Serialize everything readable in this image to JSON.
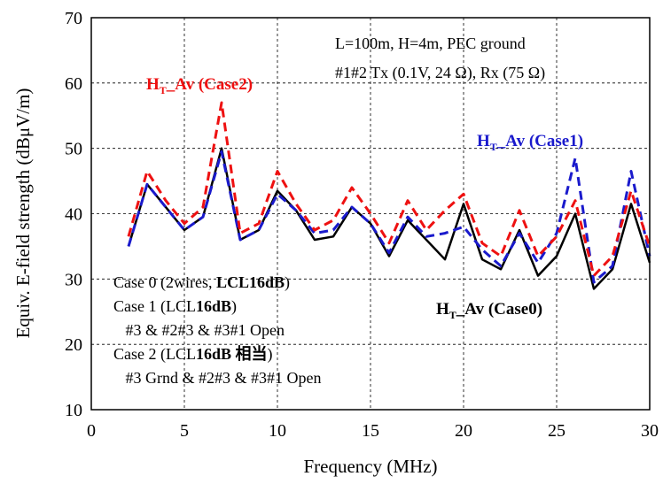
{
  "chart_data": {
    "type": "line",
    "xlabel": "Frequency (MHz)",
    "ylabel": "Equiv. E-field strength (dBμV/m)",
    "xlim": [
      0,
      30
    ],
    "ylim": [
      10,
      70
    ],
    "xticks": [
      0,
      5,
      10,
      15,
      20,
      25,
      30
    ],
    "yticks": [
      10,
      20,
      30,
      40,
      50,
      60,
      70
    ],
    "x": [
      2,
      3,
      4,
      5,
      6,
      7,
      8,
      9,
      10,
      11,
      12,
      13,
      14,
      15,
      16,
      17,
      18,
      19,
      20,
      21,
      22,
      23,
      24,
      25,
      26,
      27,
      28,
      29,
      30
    ],
    "series": [
      {
        "name": "Case0",
        "color": "#000000",
        "style": "solid",
        "values": [
          35,
          44.5,
          41,
          37.5,
          39.5,
          50,
          36,
          37.5,
          43.5,
          40.5,
          36,
          36.5,
          41,
          38.5,
          33.5,
          39,
          36,
          33,
          41.5,
          33,
          31.5,
          37.5,
          30.5,
          33.5,
          40,
          28.5,
          31.5,
          41.5,
          32.5
        ]
      },
      {
        "name": "Case1",
        "color": "#1a1acc",
        "style": "dashed",
        "values": [
          35,
          44.5,
          41,
          37.5,
          39.5,
          49.5,
          36,
          37.5,
          43,
          40.5,
          37,
          37.5,
          41,
          38.5,
          34,
          39.5,
          36.5,
          37,
          38,
          34.5,
          32,
          37,
          32.5,
          37,
          48.5,
          29.5,
          32,
          46.5,
          33.5
        ]
      },
      {
        "name": "Case2",
        "color": "#ee1111",
        "style": "dashed",
        "values": [
          36.5,
          46.5,
          42,
          38.5,
          41,
          57,
          37,
          38.5,
          46.5,
          41.5,
          37.5,
          39,
          44,
          40,
          35.5,
          42,
          37.5,
          40.5,
          43,
          35.5,
          33.5,
          40.5,
          33.5,
          36.5,
          42,
          30.5,
          33.5,
          43.5,
          35
        ]
      }
    ],
    "grid": "dashed",
    "annotations": {
      "top_line1": "L=100m, H=4m,  PEC ground",
      "top_line2": "#1#2 Tx (0.1V, 24 Ω), Rx (75 Ω)",
      "label_case2": {
        "main": "H",
        "sub": "T",
        "rest": "_Av (Case2)",
        "color": "#ee1111"
      },
      "label_case1": {
        "main": "H",
        "sub": "T",
        "rest": "_Av (Case1)",
        "color": "#1a1acc"
      },
      "label_case0": {
        "main": "H",
        "sub": "T",
        "rest": "_Av (Case0)",
        "color": "#000000"
      },
      "legend_lines": [
        [
          {
            "t": "Case 0 (2wires, ",
            "b": false
          },
          {
            "t": "LCL16dB",
            "b": true
          },
          {
            "t": ")",
            "b": false
          }
        ],
        [
          {
            "t": "Case 1 (LCL",
            "b": false
          },
          {
            "t": "16dB",
            "b": true
          },
          {
            "t": ")",
            "b": false
          }
        ],
        [
          {
            "t": "   #3 & #2#3 & #3#1 Open",
            "b": false
          }
        ],
        [
          {
            "t": "Case 2 (LCL",
            "b": false
          },
          {
            "t": "16dB 相当",
            "b": true
          },
          {
            "t": ")",
            "b": false
          }
        ],
        [
          {
            "t": "   #3 Grnd & #2#3 & #3#1 Open",
            "b": false
          }
        ]
      ]
    }
  }
}
